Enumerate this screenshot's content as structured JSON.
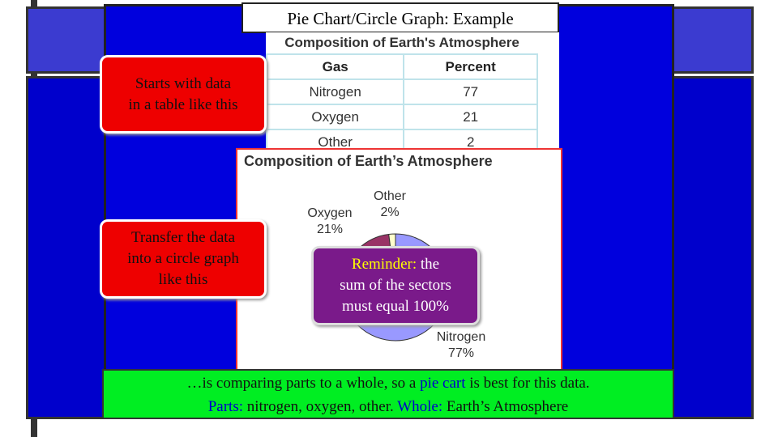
{
  "title": "Pie Chart/Circle Graph: Example",
  "table": {
    "title": "Composition of Earth's Atmosphere",
    "headers": [
      "Gas",
      "Percent"
    ],
    "rows": [
      [
        "Nitrogen",
        77
      ],
      [
        "Oxygen",
        21
      ],
      [
        "Other",
        2
      ]
    ]
  },
  "pie": {
    "type": "pie",
    "title": "Composition of Earth’s Atmosphere",
    "slices": [
      {
        "label": "Nitrogen",
        "value": 77,
        "value_label": "77%",
        "color": "#9999ff"
      },
      {
        "label": "Oxygen",
        "value": 21,
        "value_label": "21%",
        "color": "#993366"
      },
      {
        "label": "Other",
        "value": 2,
        "value_label": "2%",
        "color": "#ffffcc"
      }
    ]
  },
  "callouts": [
    {
      "lines": [
        "Starts with data",
        "in a table like this"
      ]
    },
    {
      "lines": [
        "Transfer the data",
        "into a circle graph",
        "like this"
      ]
    }
  ],
  "reminder": {
    "lines": [
      [
        {
          "text": "Reminder:",
          "color": "#ffff00"
        },
        {
          "text": " the",
          "color": "#ffffff"
        }
      ],
      [
        {
          "text": "sum of the sectors",
          "color": "#ffffff"
        }
      ],
      [
        {
          "text": "must equal 100%",
          "color": "#ffffff"
        }
      ]
    ]
  },
  "footer": {
    "lines": [
      [
        {
          "text": "…is comparing parts to a whole, so a ",
          "color": "#111111"
        },
        {
          "text": "pie cart",
          "color": "#0000cc"
        },
        {
          "text": " is best for this data.",
          "color": "#111111"
        }
      ],
      [
        {
          "text": "Parts:",
          "color": "#0000cc"
        },
        {
          "text": " nitrogen, oxygen, other. ",
          "color": "#111111"
        },
        {
          "text": "Whole:",
          "color": "#0000cc"
        },
        {
          "text": " Earth’s Atmosphere",
          "color": "#111111"
        }
      ]
    ]
  }
}
